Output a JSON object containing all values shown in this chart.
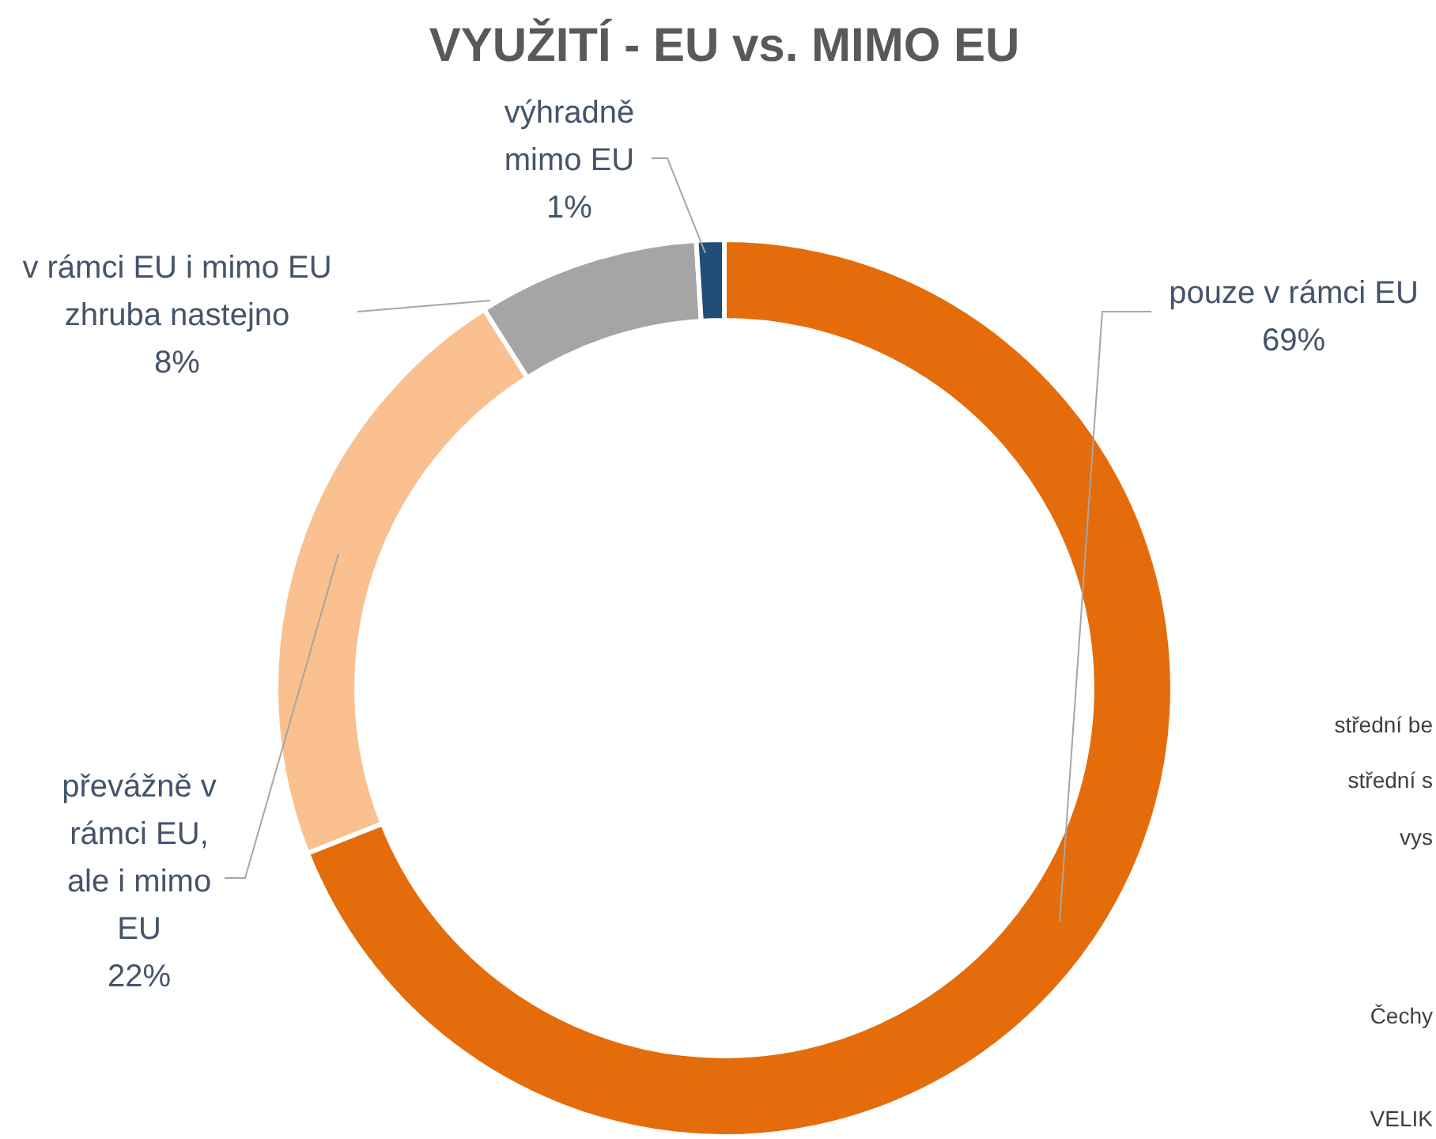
{
  "chart_data": {
    "type": "donut",
    "title": "VYUŽITÍ - EU vs. MIMO EU",
    "categories": [
      "pouze v rámci EU",
      "převážně v rámci EU, ale i mimo EU",
      "v rámci EU i mimo EU zhruba nastejno",
      "výhradně mimo EU"
    ],
    "values": [
      69,
      22,
      8,
      1
    ],
    "value_labels": [
      "69%",
      "22%",
      "8%",
      "1%"
    ],
    "colors": [
      "#e46c0a",
      "#fac090",
      "#a5a5a5",
      "#1f4e79"
    ],
    "legend": false,
    "annotations": [
      "střední be",
      "střední s",
      "vys",
      "Čechy",
      "VELIK"
    ]
  }
}
